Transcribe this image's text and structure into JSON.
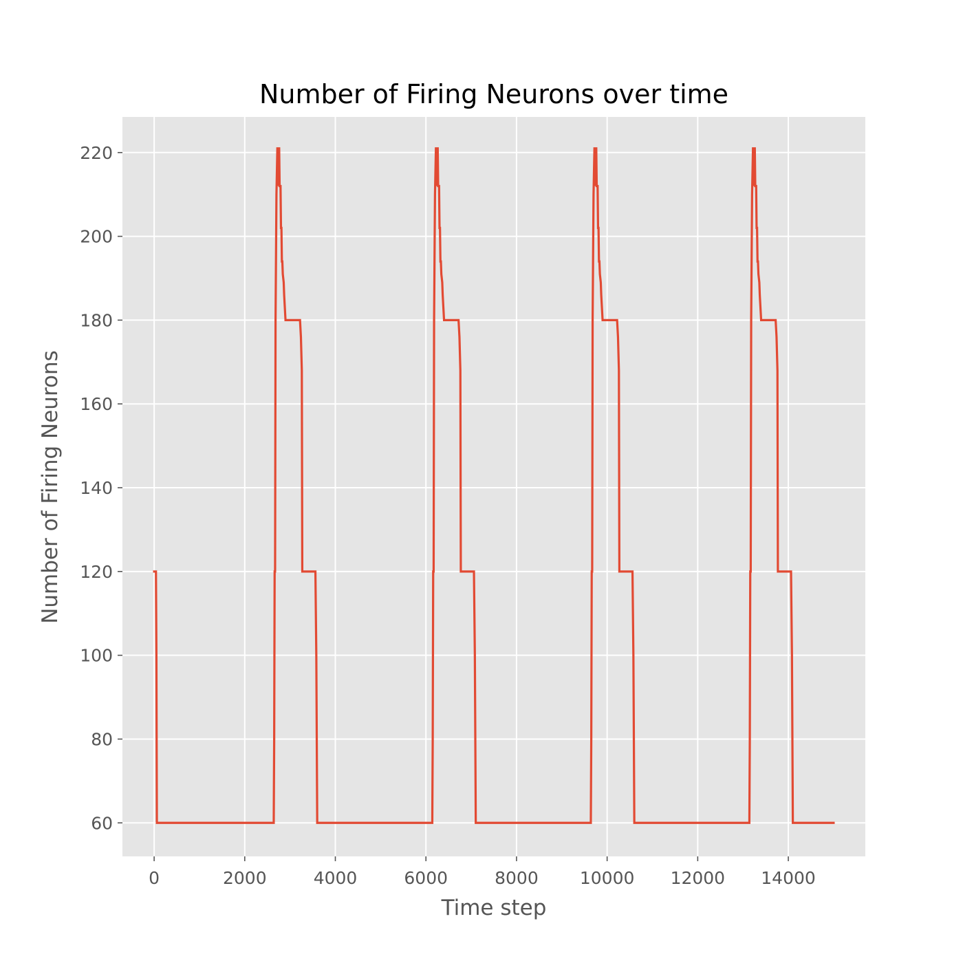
{
  "chart_data": {
    "type": "line",
    "title": "Number of Firing Neurons over time",
    "xlabel": "Time step",
    "ylabel": "Number of Firing Neurons",
    "xlim": [
      -700,
      15700
    ],
    "ylim": [
      52,
      228.5
    ],
    "xticks": [
      0,
      2000,
      4000,
      6000,
      8000,
      10000,
      12000,
      14000
    ],
    "yticks": [
      60,
      80,
      100,
      120,
      140,
      160,
      180,
      200,
      220
    ],
    "grid": true,
    "background": "#e5e5e5",
    "series": [
      {
        "color": "#e24a33",
        "x": [
          0,
          40,
          50,
          60,
          70,
          2640,
          2650,
          2660,
          2670,
          2680,
          2700,
          2720,
          2730,
          2740,
          2750,
          2760,
          2770,
          2780,
          2790,
          2800,
          2810,
          2820,
          2830,
          2840,
          2850,
          2860,
          2870,
          2880,
          2890,
          2900,
          2910,
          2920,
          2930,
          3200,
          3220,
          3240,
          3250,
          3260,
          3270,
          3280,
          3290,
          3540,
          3560,
          3580,
          3600,
          6140,
          6150,
          6160,
          6170,
          6180,
          6200,
          6220,
          6230,
          6240,
          6250,
          6260,
          6270,
          6280,
          6290,
          6300,
          6310,
          6320,
          6330,
          6340,
          6350,
          6360,
          6370,
          6380,
          6390,
          6400,
          6410,
          6420,
          6430,
          6700,
          6720,
          6740,
          6750,
          6760,
          6770,
          6780,
          6790,
          7040,
          7060,
          7080,
          7100,
          9640,
          9650,
          9660,
          9670,
          9680,
          9700,
          9720,
          9730,
          9740,
          9750,
          9760,
          9770,
          9780,
          9790,
          9800,
          9810,
          9820,
          9830,
          9840,
          9850,
          9860,
          9870,
          9880,
          9890,
          9900,
          9910,
          9920,
          9930,
          10200,
          10220,
          10240,
          10250,
          10260,
          10270,
          10280,
          10290,
          10540,
          10560,
          10580,
          10600,
          13140,
          13150,
          13160,
          13170,
          13180,
          13200,
          13220,
          13230,
          13240,
          13250,
          13260,
          13270,
          13280,
          13290,
          13300,
          13310,
          13320,
          13330,
          13340,
          13350,
          13360,
          13370,
          13380,
          13390,
          13400,
          13410,
          13420,
          13430,
          13700,
          13720,
          13740,
          13750,
          13760,
          13770,
          13780,
          13790,
          14040,
          14060,
          14080,
          14100,
          15000
        ],
        "y": [
          120,
          120,
          100,
          60,
          60,
          60,
          80,
          120,
          120,
          180,
          210,
          221,
          221,
          212,
          221,
          221,
          212,
          212,
          212,
          202,
          202,
          194,
          194,
          191,
          190,
          189,
          186,
          184,
          182,
          180,
          180,
          180,
          180,
          180,
          180,
          176,
          172,
          168,
          120,
          120,
          120,
          120,
          120,
          100,
          60,
          60,
          80,
          120,
          120,
          180,
          210,
          221,
          221,
          212,
          221,
          221,
          212,
          212,
          212,
          202,
          202,
          194,
          194,
          191,
          190,
          189,
          186,
          184,
          182,
          180,
          180,
          180,
          180,
          180,
          180,
          176,
          172,
          168,
          120,
          120,
          120,
          120,
          120,
          100,
          60,
          60,
          80,
          120,
          120,
          180,
          210,
          221,
          221,
          212,
          221,
          221,
          212,
          212,
          212,
          202,
          202,
          194,
          194,
          191,
          190,
          189,
          186,
          184,
          182,
          180,
          180,
          180,
          180,
          180,
          180,
          176,
          172,
          168,
          120,
          120,
          120,
          120,
          120,
          100,
          60,
          60,
          80,
          120,
          120,
          180,
          210,
          221,
          221,
          212,
          221,
          221,
          212,
          212,
          212,
          202,
          202,
          194,
          194,
          191,
          190,
          189,
          186,
          184,
          182,
          180,
          180,
          180,
          180,
          180,
          180,
          176,
          172,
          168,
          120,
          120,
          120,
          120,
          120,
          100,
          60,
          60
        ]
      }
    ]
  }
}
